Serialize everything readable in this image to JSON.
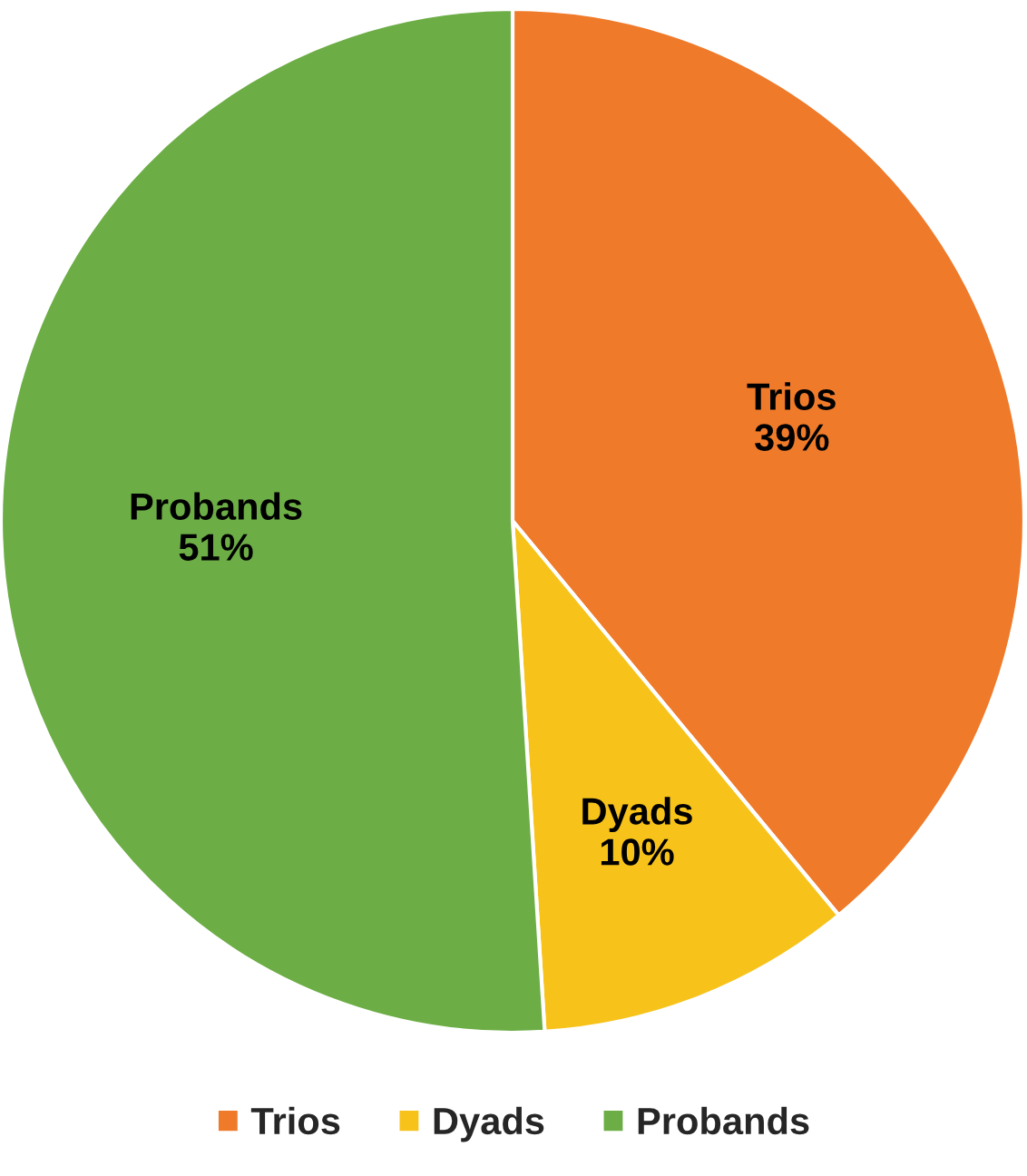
{
  "chart_data": {
    "type": "pie",
    "categories": [
      "Trios",
      "Dyads",
      "Probands"
    ],
    "values": [
      39,
      10,
      51
    ],
    "colors": [
      "#ef7a2a",
      "#f7c21a",
      "#6cad45"
    ],
    "value_labels": [
      "39%",
      "10%",
      "51%"
    ],
    "legend": "bottom"
  }
}
